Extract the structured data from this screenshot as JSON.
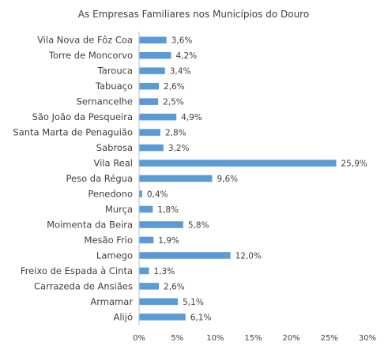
{
  "chart_data": {
    "type": "bar",
    "orientation": "horizontal",
    "title": "As Empresas Familiares nos Municípios do Douro",
    "categories": [
      "Vila Nova de Fôz Coa",
      "Torre de Moncorvo",
      "Tarouca",
      "Tabuaço",
      "Sernancelhe",
      "São João da Pesqueira",
      "Santa Marta de Penaguião",
      "Sabrosa",
      "Vila Real",
      "Peso da Régua",
      "Penedono",
      "Murça",
      "Moimenta da Beira",
      "Mesão Frio",
      "Lamego",
      "Freixo de Espada à Cinta",
      "Carrazeda de Ansiães",
      "Armamar",
      "Alijó"
    ],
    "values": [
      3.6,
      4.2,
      3.4,
      2.6,
      2.5,
      4.9,
      2.8,
      3.2,
      25.9,
      9.6,
      0.4,
      1.8,
      5.8,
      1.9,
      12.0,
      1.3,
      2.6,
      5.1,
      6.1
    ],
    "value_labels": [
      "3,6%",
      "4,2%",
      "3,4%",
      "2,6%",
      "2,5%",
      "4,9%",
      "2,8%",
      "3,2%",
      "25,9%",
      "9,6%",
      "0,4%",
      "1,8%",
      "5,8%",
      "1,9%",
      "12,0%",
      "1,3%",
      "2,6%",
      "5,1%",
      "6,1%"
    ],
    "xlim": [
      0,
      30
    ],
    "x_ticks": [
      0,
      5,
      10,
      15,
      20,
      25,
      30
    ],
    "x_tick_labels": [
      "0%",
      "5%",
      "10%",
      "15%",
      "20%",
      "25%",
      "30%"
    ],
    "grid": false,
    "bar_color": "#5b9bd5"
  }
}
